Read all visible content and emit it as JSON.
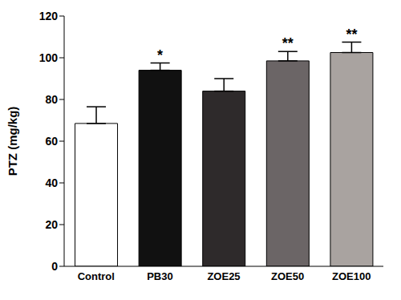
{
  "chart_data": {
    "type": "bar",
    "y_label": "PTZ (mg/kg)",
    "categories": [
      "Control",
      "PB30",
      "ZOE25",
      "ZOE50",
      "ZOE100"
    ],
    "values": [
      68.5,
      94,
      84,
      98.5,
      102.5
    ],
    "error": [
      8,
      3.5,
      6,
      4.5,
      5
    ],
    "significance": [
      null,
      "*",
      null,
      "**",
      "**"
    ],
    "colors": [
      "#ffffff",
      "#111111",
      "#2e2a2b",
      "#6b6566",
      "#a9a3a0"
    ],
    "ylim": [
      0,
      120
    ],
    "yticks": [
      0,
      20,
      40,
      60,
      80,
      100,
      120
    ],
    "grid": false
  }
}
